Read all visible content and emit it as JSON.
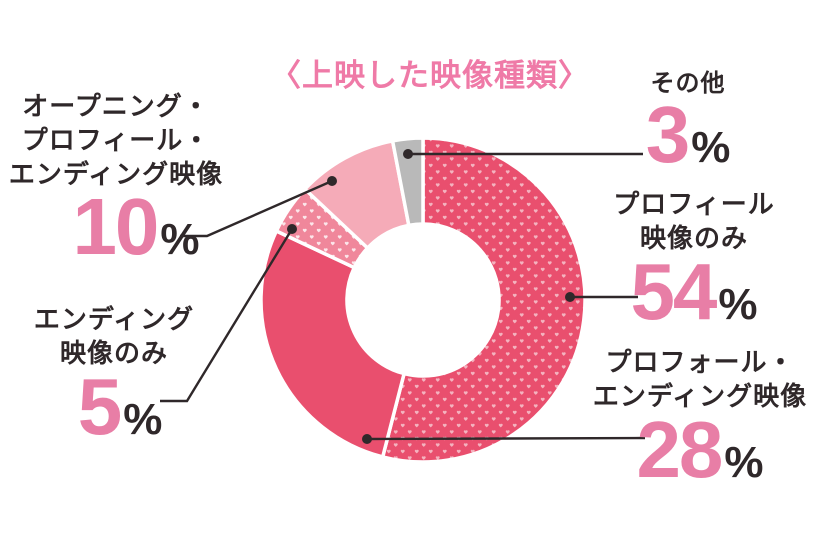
{
  "title": "〈上映した映像種類〉",
  "colors": {
    "background": "#ffffff",
    "title_pink": "#ef7aa7",
    "number_pink": "#e87ea6",
    "text_black": "#2f282a",
    "leader_line": "#2f282a",
    "main_red": "#e94f6e",
    "mid_pink": "#f0879b",
    "light_pink": "#f5abb8",
    "gray": "#b9b9b9",
    "dot_on_red": "#f4b3bf",
    "dot_on_mid": "#fce6ea"
  },
  "chart_data": {
    "type": "pie",
    "subtype": "donut",
    "title": "〈上映した映像種類〉",
    "unit": "%",
    "direction": "clockwise",
    "start_angle_deg": 0,
    "legend_position": "none",
    "slices": [
      {
        "label": "プロフィール映像のみ",
        "value": 54,
        "color": "#e94f6e",
        "pattern": "hearts",
        "dot_color": "#f4b3bf"
      },
      {
        "label": "プロフォール・エンディング映像",
        "value": 28,
        "color": "#e94f6e",
        "pattern": "solid"
      },
      {
        "label": "エンディング映像のみ",
        "value": 5,
        "color": "#f0879b",
        "pattern": "hearts",
        "dot_color": "#fce6ea"
      },
      {
        "label": "オープニング・プロフィール・エンディング映像",
        "value": 10,
        "color": "#f5abb8",
        "pattern": "solid"
      },
      {
        "label": "その他",
        "value": 3,
        "color": "#b9b9b9",
        "pattern": "solid"
      }
    ]
  },
  "labels": {
    "other": {
      "lines": [
        "その他"
      ],
      "value": "3",
      "unit": "%"
    },
    "profile_only": {
      "lines": [
        "プロフィール",
        "映像のみ"
      ],
      "value": "54",
      "unit": "%"
    },
    "profile_ending": {
      "lines": [
        "プロフォール・",
        "エンディング映像"
      ],
      "value": "28",
      "unit": "%"
    },
    "opening_profile_ending": {
      "lines": [
        "オープニング・",
        "プロフィール・",
        "エンディング映像"
      ],
      "value": "10",
      "unit": "%"
    },
    "ending_only": {
      "lines": [
        "エンディング",
        "映像のみ"
      ],
      "value": "5",
      "unit": "%"
    }
  }
}
